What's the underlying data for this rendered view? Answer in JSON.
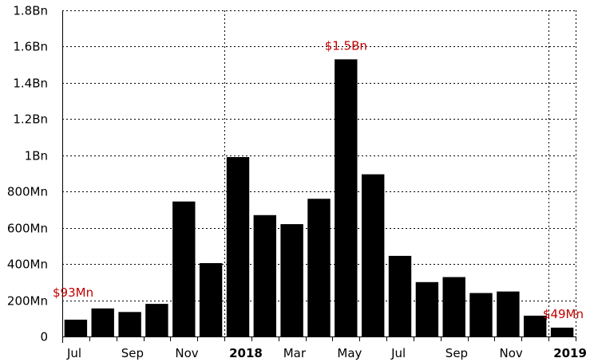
{
  "chart_data": {
    "type": "bar",
    "ylim": [
      0,
      1800000000
    ],
    "y_ticks": [
      {
        "value": 0,
        "label": "0"
      },
      {
        "value": 200000000,
        "label": "200Mn"
      },
      {
        "value": 400000000,
        "label": "400Mn"
      },
      {
        "value": 600000000,
        "label": "600Mn"
      },
      {
        "value": 800000000,
        "label": "800Mn"
      },
      {
        "value": 1000000000,
        "label": "1Bn"
      },
      {
        "value": 1200000000,
        "label": "1.2Bn"
      },
      {
        "value": 1400000000,
        "label": "1.4Bn"
      },
      {
        "value": 1600000000,
        "label": "1.6Bn"
      },
      {
        "value": 1800000000,
        "label": "1.8Bn"
      }
    ],
    "x": [
      "2017-07",
      "2017-08",
      "2017-09",
      "2017-10",
      "2017-11",
      "2017-12",
      "2018-01",
      "2018-02",
      "2018-03",
      "2018-04",
      "2018-05",
      "2018-06",
      "2018-07",
      "2018-08",
      "2018-09",
      "2018-10",
      "2018-11",
      "2018-12",
      "2019-01"
    ],
    "values": [
      93000000,
      155000000,
      135000000,
      180000000,
      745000000,
      405000000,
      990000000,
      670000000,
      620000000,
      760000000,
      1530000000,
      895000000,
      445000000,
      300000000,
      328000000,
      240000000,
      248000000,
      115000000,
      49000000
    ],
    "x_tick_labels": [
      {
        "index": 0,
        "label": "Jul",
        "bold": false
      },
      {
        "index": 2,
        "label": "Sep",
        "bold": false
      },
      {
        "index": 4,
        "label": "Nov",
        "bold": false
      },
      {
        "index": 6,
        "label": "2018",
        "bold": true
      },
      {
        "index": 8,
        "label": "Mar",
        "bold": false
      },
      {
        "index": 10,
        "label": "May",
        "bold": false
      },
      {
        "index": 12,
        "label": "Jul",
        "bold": false
      },
      {
        "index": 14,
        "label": "Sep",
        "bold": false
      },
      {
        "index": 16,
        "label": "Nov",
        "bold": false
      },
      {
        "index": 18,
        "label": "2019",
        "bold": true
      }
    ],
    "year_separators": [
      6,
      18
    ],
    "annotations": [
      {
        "index": 0,
        "text": "$93Mn"
      },
      {
        "index": 10,
        "text": "$1.5Bn"
      },
      {
        "index": 18,
        "text": "$49Mn"
      }
    ],
    "grid": true,
    "legend": "none"
  },
  "colors": {
    "bar": "#000000",
    "annotation": "#c00000",
    "grid": "#000000"
  }
}
